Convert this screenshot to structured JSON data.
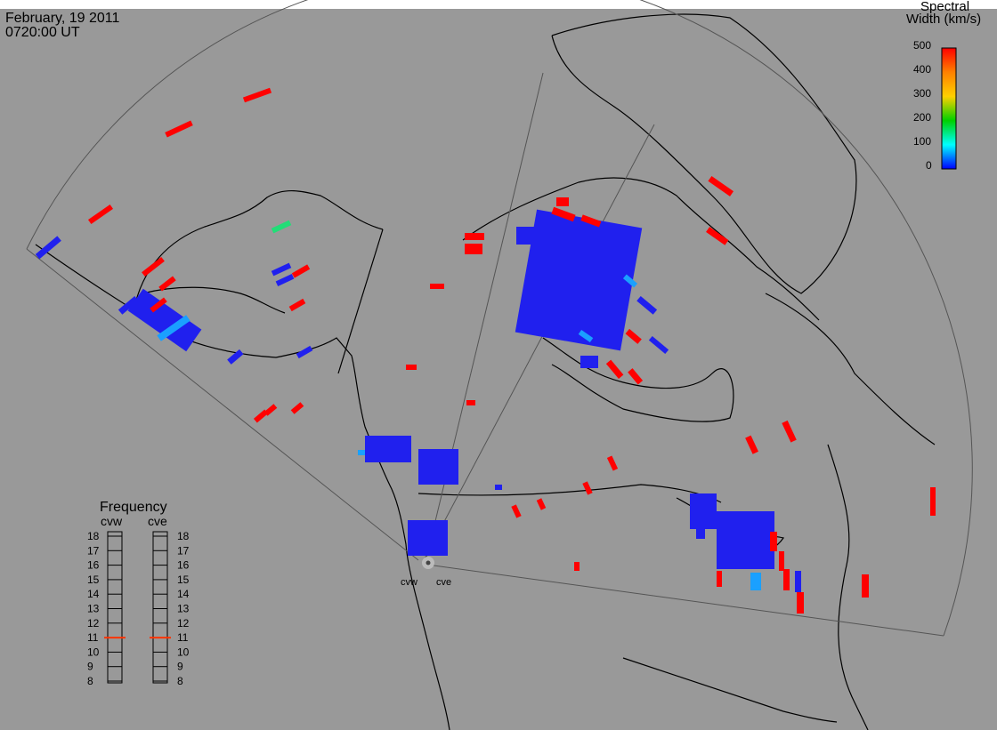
{
  "header": {
    "date": "February, 19 2011",
    "time": "0720:00 UT"
  },
  "colorbar": {
    "title_line1": "Spectral",
    "title_line2": "Width (km/s)",
    "ticks": [
      "500",
      "400",
      "300",
      "200",
      "100",
      "0"
    ],
    "gradient": [
      "#ff0000",
      "#ff8000",
      "#ffd000",
      "#00d000",
      "#00ffff",
      "#0000ff"
    ]
  },
  "radars": {
    "west_label": "cvw",
    "east_label": "cve"
  },
  "frequency_panel": {
    "title": "Frequency",
    "columns": [
      {
        "label": "cvw",
        "current_mhz": 11
      },
      {
        "label": "cve",
        "current_mhz": 11
      }
    ],
    "scale": [
      "18",
      "17",
      "16",
      "15",
      "14",
      "13",
      "12",
      "11",
      "10",
      "9",
      "8"
    ]
  },
  "colors": {
    "background": "#999999",
    "coast": "#000000",
    "fov_line": "#555555",
    "indicator": "#ff3300",
    "low_width": "#2020ee",
    "mid_width": "#1aa0ff",
    "high_width": "#ff0000",
    "green": "#22dd77"
  }
}
